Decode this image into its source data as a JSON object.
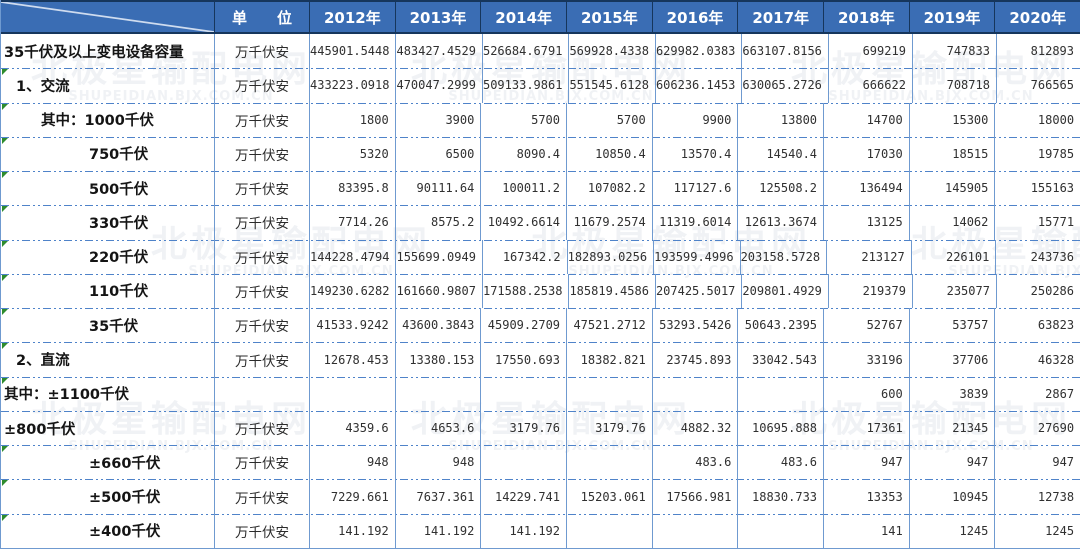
{
  "header": {
    "unit_label": "单　　位",
    "years": [
      "2012年",
      "2013年",
      "2014年",
      "2015年",
      "2016年",
      "2017年",
      "2018年",
      "2019年",
      "2020年"
    ]
  },
  "rows": [
    {
      "label": "35千伏及以上变电设备容量",
      "indent": 0,
      "marker": false,
      "unit": "万千伏安",
      "values": [
        "445901.5448",
        "483427.4529",
        "526684.6791",
        "569928.4338",
        "629982.0383",
        "663107.8156",
        "699219",
        "747833",
        "812893"
      ]
    },
    {
      "label": "1、交流",
      "indent": 1,
      "marker": true,
      "unit": "万千伏安",
      "values": [
        "433223.0918",
        "470047.2999",
        "509133.9861",
        "551545.6128",
        "606236.1453",
        "630065.2726",
        "666622",
        "708718",
        "766565"
      ]
    },
    {
      "label": "其中：1000千伏",
      "indent": 2,
      "marker": true,
      "unit": "万千伏安",
      "values": [
        "1800",
        "3900",
        "5700",
        "5700",
        "9900",
        "13800",
        "14700",
        "15300",
        "18000"
      ]
    },
    {
      "label": "750千伏",
      "indent": 3,
      "marker": true,
      "unit": "万千伏安",
      "values": [
        "5320",
        "6500",
        "8090.4",
        "10850.4",
        "13570.4",
        "14540.4",
        "17030",
        "18515",
        "19785"
      ]
    },
    {
      "label": "500千伏",
      "indent": 3,
      "marker": true,
      "unit": "万千伏安",
      "values": [
        "83395.8",
        "90111.64",
        "100011.2",
        "107082.2",
        "117127.6",
        "125508.2",
        "136494",
        "145905",
        "155163"
      ]
    },
    {
      "label": "330千伏",
      "indent": 3,
      "marker": true,
      "unit": "万千伏安",
      "values": [
        "7714.26",
        "8575.2",
        "10492.6614",
        "11679.2574",
        "11319.6014",
        "12613.3674",
        "13125",
        "14062",
        "15771"
      ]
    },
    {
      "label": "220千伏",
      "indent": 3,
      "marker": true,
      "unit": "万千伏安",
      "values": [
        "144228.4794",
        "155699.0949",
        "167342.2",
        "182893.0256",
        "193599.4996",
        "203158.5728",
        "213127",
        "226101",
        "243736"
      ]
    },
    {
      "label": "110千伏",
      "indent": 3,
      "marker": true,
      "unit": "万千伏安",
      "values": [
        "149230.6282",
        "161660.9807",
        "171588.2538",
        "185819.4586",
        "207425.5017",
        "209801.4929",
        "219379",
        "235077",
        "250286"
      ]
    },
    {
      "label": "35千伏",
      "indent": 3,
      "marker": true,
      "unit": "万千伏安",
      "values": [
        "41533.9242",
        "43600.3843",
        "45909.2709",
        "47521.2712",
        "53293.5426",
        "50643.2395",
        "52767",
        "53757",
        "63823"
      ]
    },
    {
      "label": "2、直流",
      "indent": 1,
      "marker": true,
      "unit": "万千伏安",
      "values": [
        "12678.453",
        "13380.153",
        "17550.693",
        "18382.821",
        "23745.893",
        "33042.543",
        "33196",
        "37706",
        "46328"
      ]
    },
    {
      "label": "其中：±1100千伏",
      "indent": 0,
      "marker": true,
      "unit": "",
      "values": [
        "",
        "",
        "",
        "",
        "",
        "",
        "600",
        "3839",
        "2867"
      ]
    },
    {
      "label": "±800千伏",
      "indent": 0,
      "marker": false,
      "unit": "万千伏安",
      "values": [
        "4359.6",
        "4653.6",
        "3179.76",
        "3179.76",
        "4882.32",
        "10695.888",
        "17361",
        "21345",
        "27690"
      ]
    },
    {
      "label": "±660千伏",
      "indent": 3,
      "marker": true,
      "unit": "万千伏安",
      "values": [
        "948",
        "948",
        "",
        "",
        "483.6",
        "483.6",
        "947",
        "947",
        "947"
      ]
    },
    {
      "label": "±500千伏",
      "indent": 3,
      "marker": true,
      "unit": "万千伏安",
      "values": [
        "7229.661",
        "7637.361",
        "14229.741",
        "15203.061",
        "17566.981",
        "18830.733",
        "13353",
        "10945",
        "12738"
      ]
    },
    {
      "label": "±400千伏",
      "indent": 3,
      "marker": true,
      "unit": "万千伏安",
      "values": [
        "141.192",
        "141.192",
        "141.192",
        "",
        "",
        "",
        "141",
        "1245",
        "1245"
      ]
    }
  ],
  "watermark": {
    "cjk": "北极星输配电网",
    "latin": "SHUPEIDIAN.BJX.COM.CN"
  },
  "colors": {
    "header_bg": "#3a6db4",
    "header_border": "#16365c",
    "grid_blue": "#6f9ad0",
    "dash_blue": "#4f83c9",
    "marker_green": "#2e8b2e",
    "header_text": "#ffffff",
    "value_text": "#303030"
  }
}
